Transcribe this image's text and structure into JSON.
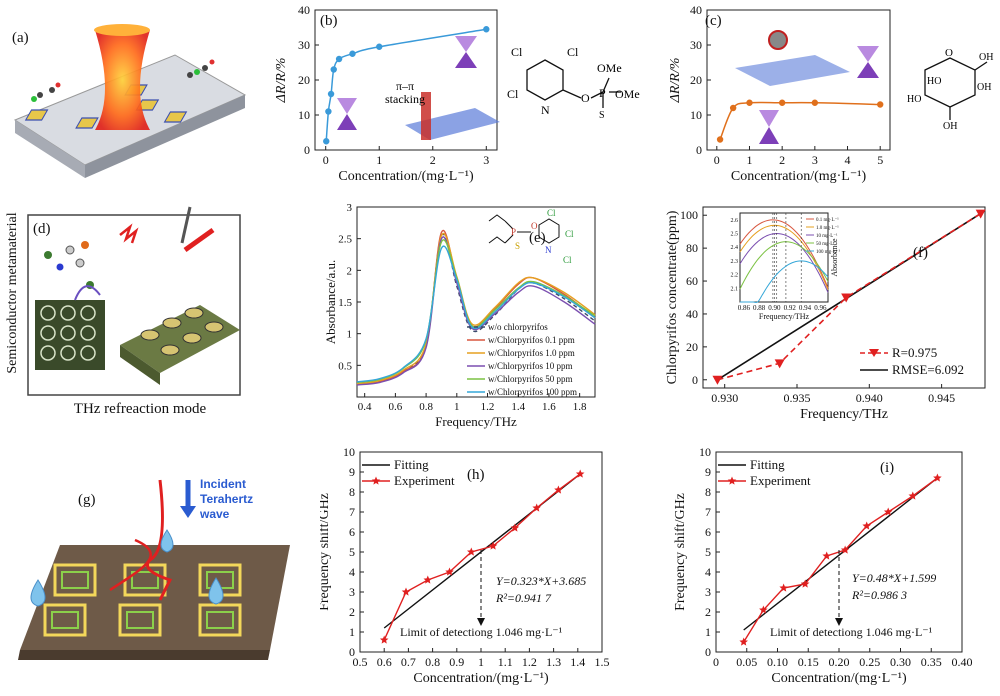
{
  "panels": {
    "a": {
      "label": "(a)"
    },
    "b": {
      "label": "(b)",
      "annotation": "π–π stacking",
      "annotation_line1": "π–π",
      "annotation_line2": "stacking",
      "molecule": {
        "cl1": "Cl",
        "cl2": "Cl",
        "cl3": "Cl",
        "n": "N",
        "o": "O",
        "p": "P",
        "s": "S",
        "ome1": "OMe",
        "ome2": "OMe"
      }
    },
    "c": {
      "label": "(c)",
      "molecule": {
        "o": "O",
        "oh1": "HO",
        "oh2": "OH",
        "oh3": "OH",
        "oh4": "HO",
        "oh5": "OH"
      }
    },
    "d": {
      "label": "(d)",
      "side_title": "Semiconductor metamaterial",
      "caption": "THz refreaction mode"
    },
    "e": {
      "label": "(e)",
      "molecule": {
        "cl1": "Cl",
        "cl2": "Cl",
        "cl3": "Cl",
        "n": "N",
        "o": "O",
        "p": "P",
        "s": "S"
      }
    },
    "f": {
      "label": "(f)"
    },
    "g": {
      "label": "(g)",
      "incident_line1": "Incident",
      "incident_line2": "Terahertz",
      "incident_line3": "wave"
    },
    "h": {
      "label": "(h)"
    },
    "i": {
      "label": "(i)"
    }
  },
  "chart_data": [
    {
      "id": "b",
      "type": "scatter",
      "xlabel": "Concentration/(mg·L⁻¹)",
      "ylabel": "ΔR/R/%",
      "xlim": [
        -0.2,
        3.2
      ],
      "ylim": [
        0,
        40
      ],
      "xticks": [
        0,
        1,
        2,
        3
      ],
      "yticks": [
        0,
        10,
        20,
        30,
        40
      ],
      "x": [
        0.01,
        0.05,
        0.1,
        0.15,
        0.25,
        0.5,
        1.0,
        3.0
      ],
      "y": [
        2.5,
        11,
        16,
        23,
        26,
        27.5,
        29.5,
        34.5
      ],
      "color": "#3a9ad9"
    },
    {
      "id": "c",
      "type": "scatter",
      "xlabel": "Concentration/(mg·L⁻¹)",
      "ylabel": "ΔR/R/%",
      "xlim": [
        -0.3,
        5.3
      ],
      "ylim": [
        0,
        40
      ],
      "xticks": [
        0,
        1,
        2,
        3,
        4,
        5
      ],
      "yticks": [
        0,
        10,
        20,
        30,
        40
      ],
      "x": [
        0.1,
        0.5,
        1.0,
        2.0,
        3.0,
        5.0
      ],
      "y": [
        3,
        12,
        13.5,
        13.5,
        13.5,
        13
      ],
      "color": "#e0701c"
    },
    {
      "id": "e",
      "type": "line",
      "xlabel": "Frequency/THz",
      "ylabel": "Absorbance/a.u.",
      "xlim": [
        0.35,
        1.9
      ],
      "ylim": [
        0.0,
        3.0
      ],
      "xticks": [
        0.4,
        0.6,
        0.8,
        1.0,
        1.2,
        1.4,
        1.6,
        1.8
      ],
      "yticks": [
        0.5,
        1.0,
        1.5,
        2.0,
        2.5,
        3.0
      ],
      "series": [
        {
          "name": "w/o chlorpyrifos",
          "color": "#3b4c6b",
          "dash": true,
          "y": [
            0.2,
            0.25,
            0.4,
            0.82,
            2.55,
            1.75,
            1.05,
            1.3,
            1.7,
            1.8,
            1.55,
            1.2
          ]
        },
        {
          "name": "w/Chlorpyrifos 0.1 ppm",
          "color": "#d8573f",
          "y": [
            0.2,
            0.24,
            0.4,
            0.8,
            2.6,
            1.85,
            1.12,
            1.4,
            1.78,
            1.88,
            1.62,
            1.25
          ]
        },
        {
          "name": "w/Chlorpyrifos 1.0 ppm",
          "color": "#e6a021",
          "y": [
            0.21,
            0.26,
            0.42,
            0.84,
            2.55,
            1.9,
            1.15,
            1.42,
            1.8,
            1.88,
            1.65,
            1.3
          ]
        },
        {
          "name": "w/Chlorpyrifos 10 ppm",
          "color": "#7b4fb0",
          "y": [
            0.19,
            0.23,
            0.38,
            0.78,
            2.5,
            1.8,
            1.08,
            1.32,
            1.65,
            1.75,
            1.5,
            1.15
          ]
        },
        {
          "name": "w/Chlorpyrifos 50 ppm",
          "color": "#7cc243",
          "y": [
            0.23,
            0.28,
            0.45,
            0.9,
            2.45,
            1.88,
            1.12,
            1.38,
            1.72,
            1.82,
            1.6,
            1.28
          ]
        },
        {
          "name": "w/Chlorpyrifos 100 ppm",
          "color": "#35a7d8",
          "y": [
            0.24,
            0.29,
            0.46,
            0.92,
            2.35,
            1.85,
            1.1,
            1.35,
            1.7,
            1.8,
            1.58,
            1.25
          ]
        }
      ],
      "x": [
        0.35,
        0.5,
        0.65,
        0.8,
        0.9,
        1.0,
        1.1,
        1.25,
        1.4,
        1.5,
        1.7,
        1.9
      ]
    },
    {
      "id": "f",
      "type": "line",
      "xlabel": "Frequency/THz",
      "ylabel": "Chlorpyrifos concentrate(ppm)",
      "xlim": [
        0.9285,
        0.948
      ],
      "ylim": [
        -5,
        105
      ],
      "xticks": [
        0.93,
        0.935,
        0.94,
        0.945
      ],
      "xtick_labels": [
        "0.930",
        "0.935",
        "0.940",
        "0.945"
      ],
      "yticks": [
        0,
        20,
        40,
        60,
        80,
        100
      ],
      "series": [
        {
          "name": "R=0.975",
          "color": "#e02020",
          "dash": true,
          "marker": "triangle-down",
          "x": [
            0.9295,
            0.9338,
            0.9384,
            0.9477
          ],
          "y": [
            0,
            10,
            50,
            101
          ]
        },
        {
          "name": "RMSE=6.092",
          "color": "#111111",
          "x": [
            0.9295,
            0.9477
          ],
          "y": [
            0,
            101
          ]
        }
      ],
      "legend": [
        "R=0.975",
        "RMSE=6.092"
      ],
      "inset": {
        "xlabel": "Frequency/THz",
        "ylabel": "Absorbance",
        "xlim": [
          0.855,
          0.97
        ],
        "ylim": [
          2.0,
          2.65
        ],
        "xticks": [
          0.86,
          0.88,
          0.9,
          0.92,
          0.94,
          0.96
        ],
        "xtick_labels": [
          "0.86",
          "0.88",
          "0.90",
          "0.92",
          "0.94",
          "0.96"
        ],
        "yticks": [
          2.1,
          2.2,
          2.3,
          2.4,
          2.5,
          2.6
        ],
        "series": [
          {
            "name": "0.1 mg·L⁻¹",
            "color": "#d8573f",
            "peak": 0.898,
            "top": 2.6
          },
          {
            "name": "1.0 mg·L⁻¹",
            "color": "#e6a021",
            "peak": 0.9,
            "top": 2.56
          },
          {
            "name": "10 mg·L⁻¹",
            "color": "#7b4fb0",
            "peak": 0.903,
            "top": 2.5
          },
          {
            "name": "50 mg·L⁻¹",
            "color": "#7cc243",
            "peak": 0.915,
            "top": 2.44
          },
          {
            "name": "100 mg·L⁻¹",
            "color": "#35a7d8",
            "peak": 0.935,
            "top": 2.3
          }
        ]
      }
    },
    {
      "id": "h",
      "type": "line",
      "xlabel": "Concentration/(mg·L⁻¹)",
      "ylabel": "Frequency shift/GHz",
      "xlim": [
        0.5,
        1.5
      ],
      "ylim": [
        0,
        10
      ],
      "xticks": [
        0.5,
        0.6,
        0.7,
        0.8,
        0.9,
        1.0,
        1.1,
        1.2,
        1.3,
        1.4,
        1.5
      ],
      "yticks": [
        0,
        1,
        2,
        3,
        4,
        5,
        6,
        7,
        8,
        9,
        10
      ],
      "series": [
        {
          "name": "Fitting",
          "color": "#111111",
          "x": [
            0.6,
            1.41
          ],
          "y": [
            1.2,
            8.9
          ]
        },
        {
          "name": "Experiment",
          "color": "#e02020",
          "marker": "star",
          "x": [
            0.6,
            0.69,
            0.78,
            0.87,
            0.96,
            1.05,
            1.14,
            1.23,
            1.32,
            1.41
          ],
          "y": [
            0.6,
            3.0,
            3.6,
            4.0,
            5.0,
            5.3,
            6.2,
            7.2,
            8.1,
            8.9
          ]
        }
      ],
      "equation": "Y=0.323*X+3.685",
      "r2": "R²=0.941 7",
      "limit_text": "Limit of detectiong 1.046 mg·L⁻¹",
      "limit_x": 1.0
    },
    {
      "id": "i",
      "type": "line",
      "xlabel": "Concentration/(mg·L⁻¹)",
      "ylabel": "Frequency shift/GHz",
      "xlim": [
        0.0,
        0.4
      ],
      "ylim": [
        0,
        10
      ],
      "xticks": [
        0,
        0.05,
        0.1,
        0.15,
        0.2,
        0.25,
        0.3,
        0.35,
        0.4
      ],
      "xtick_labels": [
        "0",
        "0.05",
        "0.10",
        "0.15",
        "0.20",
        "0.25",
        "0.30",
        "0.35",
        "0.40"
      ],
      "yticks": [
        0,
        1,
        2,
        3,
        4,
        5,
        6,
        7,
        8,
        9,
        10
      ],
      "series": [
        {
          "name": "Fitting",
          "color": "#111111",
          "x": [
            0.045,
            0.36
          ],
          "y": [
            1.1,
            8.7
          ]
        },
        {
          "name": "Experiment",
          "color": "#e02020",
          "marker": "star",
          "x": [
            0.045,
            0.077,
            0.11,
            0.145,
            0.18,
            0.21,
            0.245,
            0.28,
            0.32,
            0.36
          ],
          "y": [
            0.5,
            2.1,
            3.2,
            3.4,
            4.8,
            5.1,
            6.3,
            7.0,
            7.8,
            8.7
          ]
        }
      ],
      "equation": "Y=0.48*X+1.599",
      "r2": "R²=0.986 3",
      "limit_text": "Limit of detectiong 1.046 mg·L⁻¹",
      "limit_x": 0.2
    }
  ]
}
